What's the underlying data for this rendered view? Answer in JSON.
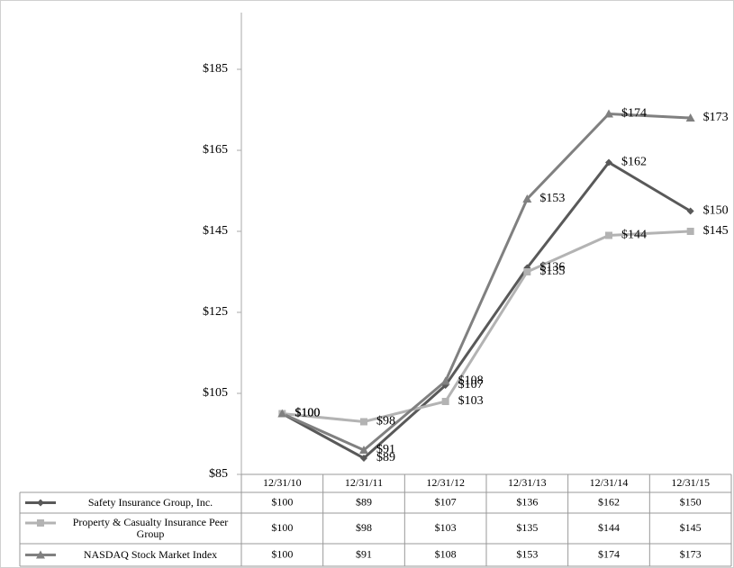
{
  "chart_data": {
    "type": "line",
    "categories": [
      "12/31/10",
      "12/31/11",
      "12/31/12",
      "12/31/13",
      "12/31/14",
      "12/31/15"
    ],
    "series": [
      {
        "name": "Safety Insurance Group, Inc.",
        "color": "#595959",
        "marker": "diamond",
        "values": [
          100,
          89,
          107,
          136,
          162,
          150
        ],
        "value_labels": [
          "$100",
          "$89",
          "$107",
          "$136",
          "$162",
          "$150"
        ]
      },
      {
        "name": "Property & Casualty Insurance Peer Group",
        "color": "#b3b3b3",
        "marker": "square",
        "values": [
          100,
          98,
          103,
          135,
          144,
          145
        ],
        "value_labels": [
          "$100",
          "$98",
          "$103",
          "$135",
          "$144",
          "$145"
        ]
      },
      {
        "name": "NASDAQ Stock Market Index",
        "color": "#808080",
        "marker": "triangle",
        "values": [
          100,
          91,
          108,
          153,
          174,
          173
        ],
        "value_labels": [
          "$100",
          "$91",
          "$108",
          "$153",
          "$174",
          "$173"
        ]
      }
    ],
    "ylim": [
      85,
      199
    ],
    "yticks": [
      {
        "value": 85,
        "label": "$85"
      },
      {
        "value": 105,
        "label": "$105"
      },
      {
        "value": 125,
        "label": "$125"
      },
      {
        "value": 145,
        "label": "$145"
      },
      {
        "value": 165,
        "label": "$165"
      },
      {
        "value": 185,
        "label": "$185"
      }
    ]
  }
}
